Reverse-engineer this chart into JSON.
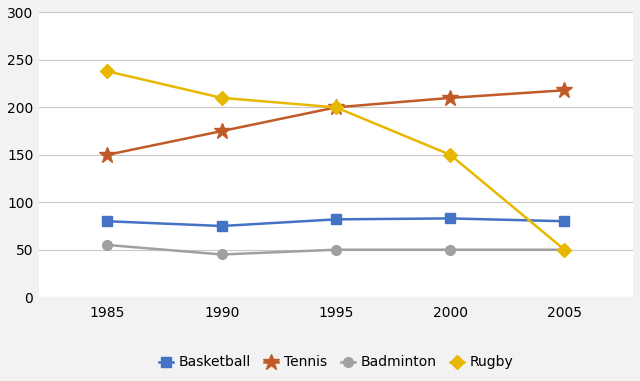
{
  "years": [
    1985,
    1990,
    1995,
    2000,
    2005
  ],
  "series": {
    "Basketball": {
      "values": [
        80,
        75,
        82,
        83,
        80
      ],
      "color": "#4472C4",
      "marker": "s",
      "markersize": 7
    },
    "Tennis": {
      "values": [
        150,
        175,
        200,
        210,
        218
      ],
      "color": "#C05A28",
      "marker": "*",
      "markersize": 12
    },
    "Badminton": {
      "values": [
        55,
        45,
        50,
        50,
        50
      ],
      "color": "#A0A0A0",
      "marker": "o",
      "markersize": 7
    },
    "Rugby": {
      "values": [
        238,
        210,
        200,
        150,
        50
      ],
      "color": "#E8B800",
      "marker": "D",
      "markersize": 7
    }
  },
  "ylim": [
    0,
    300
  ],
  "yticks": [
    0,
    50,
    100,
    150,
    200,
    250,
    300
  ],
  "background_color": "#f2f2f2",
  "plot_bg_color": "#ffffff",
  "grid_color": "#c8c8c8",
  "legend_order": [
    "Basketball",
    "Tennis",
    "Badminton",
    "Rugby"
  ],
  "linewidth": 1.8,
  "tick_fontsize": 10,
  "legend_fontsize": 10
}
